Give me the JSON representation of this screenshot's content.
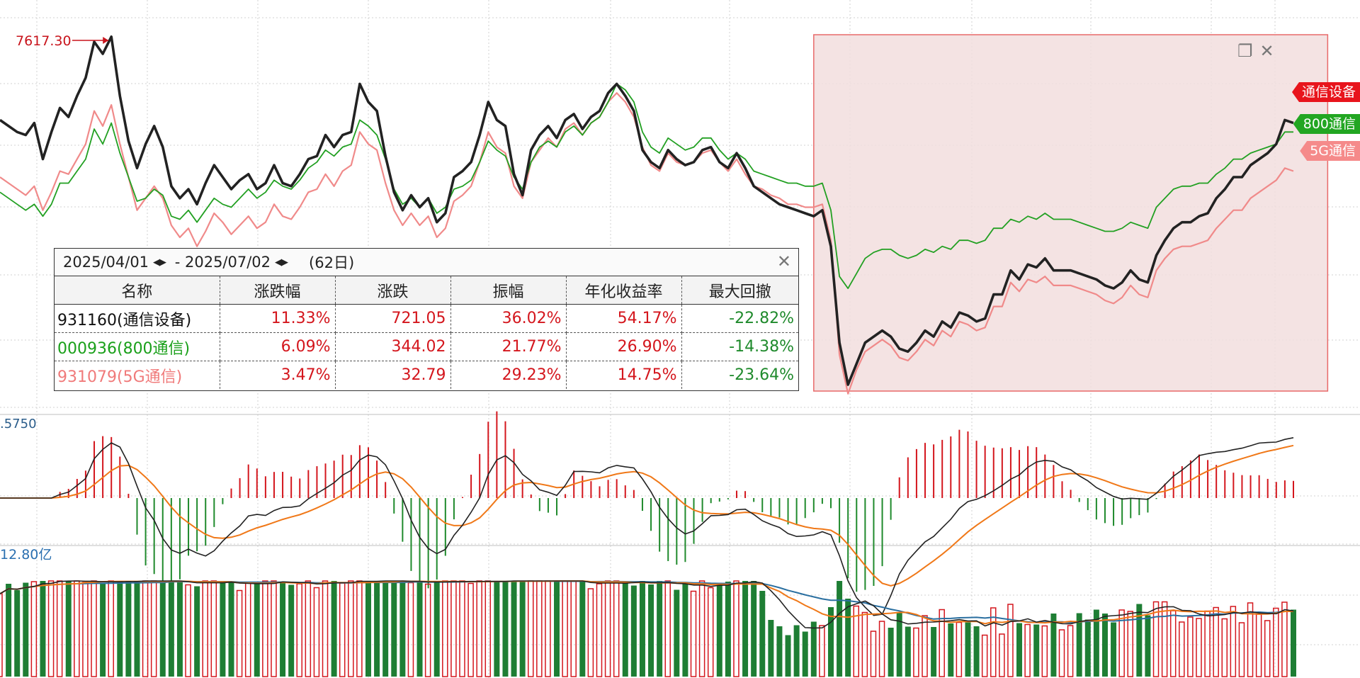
{
  "stats_panel": {
    "start_date": "2025/04/01",
    "end_date": "2025/07/02",
    "days": "(62日)",
    "columns": [
      "名称",
      "涨跌幅",
      "涨跌",
      "振幅",
      "年化收益率",
      "最大回撤"
    ],
    "rows": [
      {
        "name": "931160(通信设备)",
        "color": "#111111",
        "change_pct": "11.33%",
        "change": "721.05",
        "amplitude": "36.02%",
        "annual": "54.17%",
        "max_dd": "-22.82%"
      },
      {
        "name": "000936(800通信)",
        "color": "#1aa01a",
        "change_pct": "6.09%",
        "change": "344.02",
        "amplitude": "21.77%",
        "annual": "26.90%",
        "max_dd": "-14.38%"
      },
      {
        "name": "931079(5G通信)",
        "color": "#f07a7a",
        "change_pct": "3.47%",
        "change": "32.79",
        "amplitude": "29.23%",
        "annual": "14.75%",
        "max_dd": "-23.64%"
      }
    ]
  },
  "labels": {
    "peak": "7617.30",
    "macd_value": ".5750",
    "volume_value": "12.80亿"
  },
  "series_tags": [
    {
      "name": "通信设备",
      "bg": "#e8141c",
      "fg": "#ffffff"
    },
    {
      "name": "800通信",
      "bg": "#22a622",
      "fg": "#ffffff"
    },
    {
      "name": "5G通信",
      "bg": "#f58a8a",
      "fg": "#ffffff"
    }
  ],
  "icons": {
    "restore": "window-restore-icon",
    "close": "close-icon",
    "arrows": "left-right-arrows-icon"
  },
  "colors": {
    "up": "#d4161d",
    "down": "#1f8a2c",
    "selection": "#f2dede",
    "selection_border": "#e86a6a"
  },
  "chart_data": {
    "type": "line",
    "title": "",
    "series": [
      {
        "name": "通信设备",
        "color": "#222222",
        "values": [
          7340,
          7320,
          7300,
          7290,
          7330,
          7210,
          7300,
          7380,
          7350,
          7420,
          7480,
          7600,
          7560,
          7617,
          7420,
          7270,
          7180,
          7260,
          7320,
          7250,
          7120,
          7080,
          7110,
          7060,
          7130,
          7190,
          7150,
          7110,
          7140,
          7160,
          7110,
          7130,
          7190,
          7130,
          7120,
          7160,
          7210,
          7220,
          7290,
          7250,
          7290,
          7300,
          7460,
          7400,
          7370,
          7220,
          7100,
          7040,
          7090,
          7050,
          7080,
          7000,
          7030,
          7150,
          7170,
          7200,
          7290,
          7400,
          7340,
          7320,
          7160,
          7090,
          7240,
          7290,
          7320,
          7280,
          7340,
          7360,
          7310,
          7350,
          7370,
          7430,
          7460,
          7420,
          7370,
          7240,
          7200,
          7180,
          7240,
          7210,
          7190,
          7200,
          7240,
          7250,
          7200,
          7180,
          7230,
          7180,
          7120,
          7100,
          7080,
          7060,
          7050,
          7040,
          7030,
          7020,
          7040,
          6920,
          6600,
          6460,
          6530,
          6600,
          6620,
          6640,
          6620,
          6580,
          6570,
          6600,
          6640,
          6620,
          6670,
          6650,
          6700,
          6690,
          6670,
          6680,
          6760,
          6760,
          6840,
          6810,
          6860,
          6850,
          6880,
          6840,
          6840,
          6840,
          6830,
          6820,
          6810,
          6790,
          6780,
          6800,
          6840,
          6810,
          6800,
          6890,
          6940,
          6980,
          7000,
          7000,
          7020,
          7030,
          7080,
          7110,
          7150,
          7150,
          7190,
          7210,
          7230,
          7260,
          7340,
          7330
        ]
      },
      {
        "name": "800通信",
        "color": "#22a022",
        "values": [
          7100,
          7080,
          7060,
          7040,
          7060,
          7020,
          7060,
          7130,
          7130,
          7170,
          7210,
          7310,
          7260,
          7330,
          7230,
          7150,
          7070,
          7080,
          7110,
          7090,
          7020,
          7010,
          7040,
          7000,
          7040,
          7080,
          7060,
          7050,
          7080,
          7110,
          7080,
          7100,
          7140,
          7120,
          7110,
          7140,
          7180,
          7200,
          7240,
          7220,
          7250,
          7260,
          7340,
          7320,
          7290,
          7210,
          7110,
          7060,
          7080,
          7050,
          7080,
          7030,
          7050,
          7110,
          7120,
          7140,
          7200,
          7270,
          7240,
          7220,
          7150,
          7110,
          7200,
          7250,
          7270,
          7250,
          7300,
          7320,
          7290,
          7330,
          7350,
          7400,
          7460,
          7440,
          7400,
          7300,
          7250,
          7230,
          7280,
          7260,
          7240,
          7250,
          7280,
          7280,
          7240,
          7210,
          7230,
          7210,
          7170,
          7160,
          7150,
          7140,
          7130,
          7130,
          7120,
          7120,
          7130,
          7040,
          6820,
          6780,
          6830,
          6880,
          6900,
          6910,
          6910,
          6890,
          6880,
          6890,
          6910,
          6900,
          6920,
          6910,
          6940,
          6940,
          6930,
          6940,
          6980,
          6980,
          7010,
          7000,
          7020,
          7010,
          7030,
          7010,
          7010,
          7010,
          7000,
          6990,
          6980,
          6970,
          6970,
          6980,
          7000,
          6990,
          6980,
          7050,
          7080,
          7110,
          7120,
          7120,
          7130,
          7130,
          7160,
          7180,
          7210,
          7210,
          7230,
          7240,
          7250,
          7260,
          7300,
          7300
        ]
      },
      {
        "name": "5G通信",
        "color": "#f08a8a",
        "values": [
          7150,
          7130,
          7110,
          7090,
          7120,
          7040,
          7100,
          7170,
          7160,
          7210,
          7260,
          7370,
          7320,
          7390,
          7260,
          7150,
          7040,
          7080,
          7120,
          7080,
          6990,
          6950,
          6980,
          6920,
          6970,
          7030,
          7000,
          6960,
          6990,
          7020,
          6980,
          7000,
          7060,
          7020,
          7010,
          7050,
          7100,
          7110,
          7160,
          7120,
          7170,
          7190,
          7300,
          7260,
          7240,
          7130,
          7040,
          6990,
          7030,
          6990,
          7020,
          6950,
          6980,
          7070,
          7090,
          7120,
          7200,
          7300,
          7250,
          7230,
          7120,
          7080,
          7200,
          7240,
          7280,
          7250,
          7310,
          7330,
          7290,
          7330,
          7350,
          7400,
          7430,
          7400,
          7350,
          7250,
          7190,
          7170,
          7230,
          7200,
          7190,
          7200,
          7230,
          7240,
          7200,
          7170,
          7210,
          7160,
          7120,
          7110,
          7090,
          7080,
          7060,
          7060,
          7050,
          7050,
          7060,
          6940,
          6560,
          6430,
          6510,
          6570,
          6590,
          6610,
          6590,
          6550,
          6540,
          6570,
          6610,
          6590,
          6640,
          6620,
          6670,
          6660,
          6640,
          6650,
          6720,
          6720,
          6800,
          6770,
          6810,
          6800,
          6820,
          6790,
          6790,
          6790,
          6780,
          6770,
          6760,
          6740,
          6730,
          6750,
          6790,
          6760,
          6750,
          6840,
          6880,
          6910,
          6920,
          6920,
          6930,
          6940,
          6980,
          7010,
          7040,
          7040,
          7080,
          7100,
          7120,
          7140,
          7180,
          7170
        ]
      }
    ],
    "ylim": [
      6420,
      7680
    ],
    "peak_index": 13,
    "selection_range": [
      95,
      155
    ],
    "grid": true,
    "legend": "right-edge tags"
  }
}
